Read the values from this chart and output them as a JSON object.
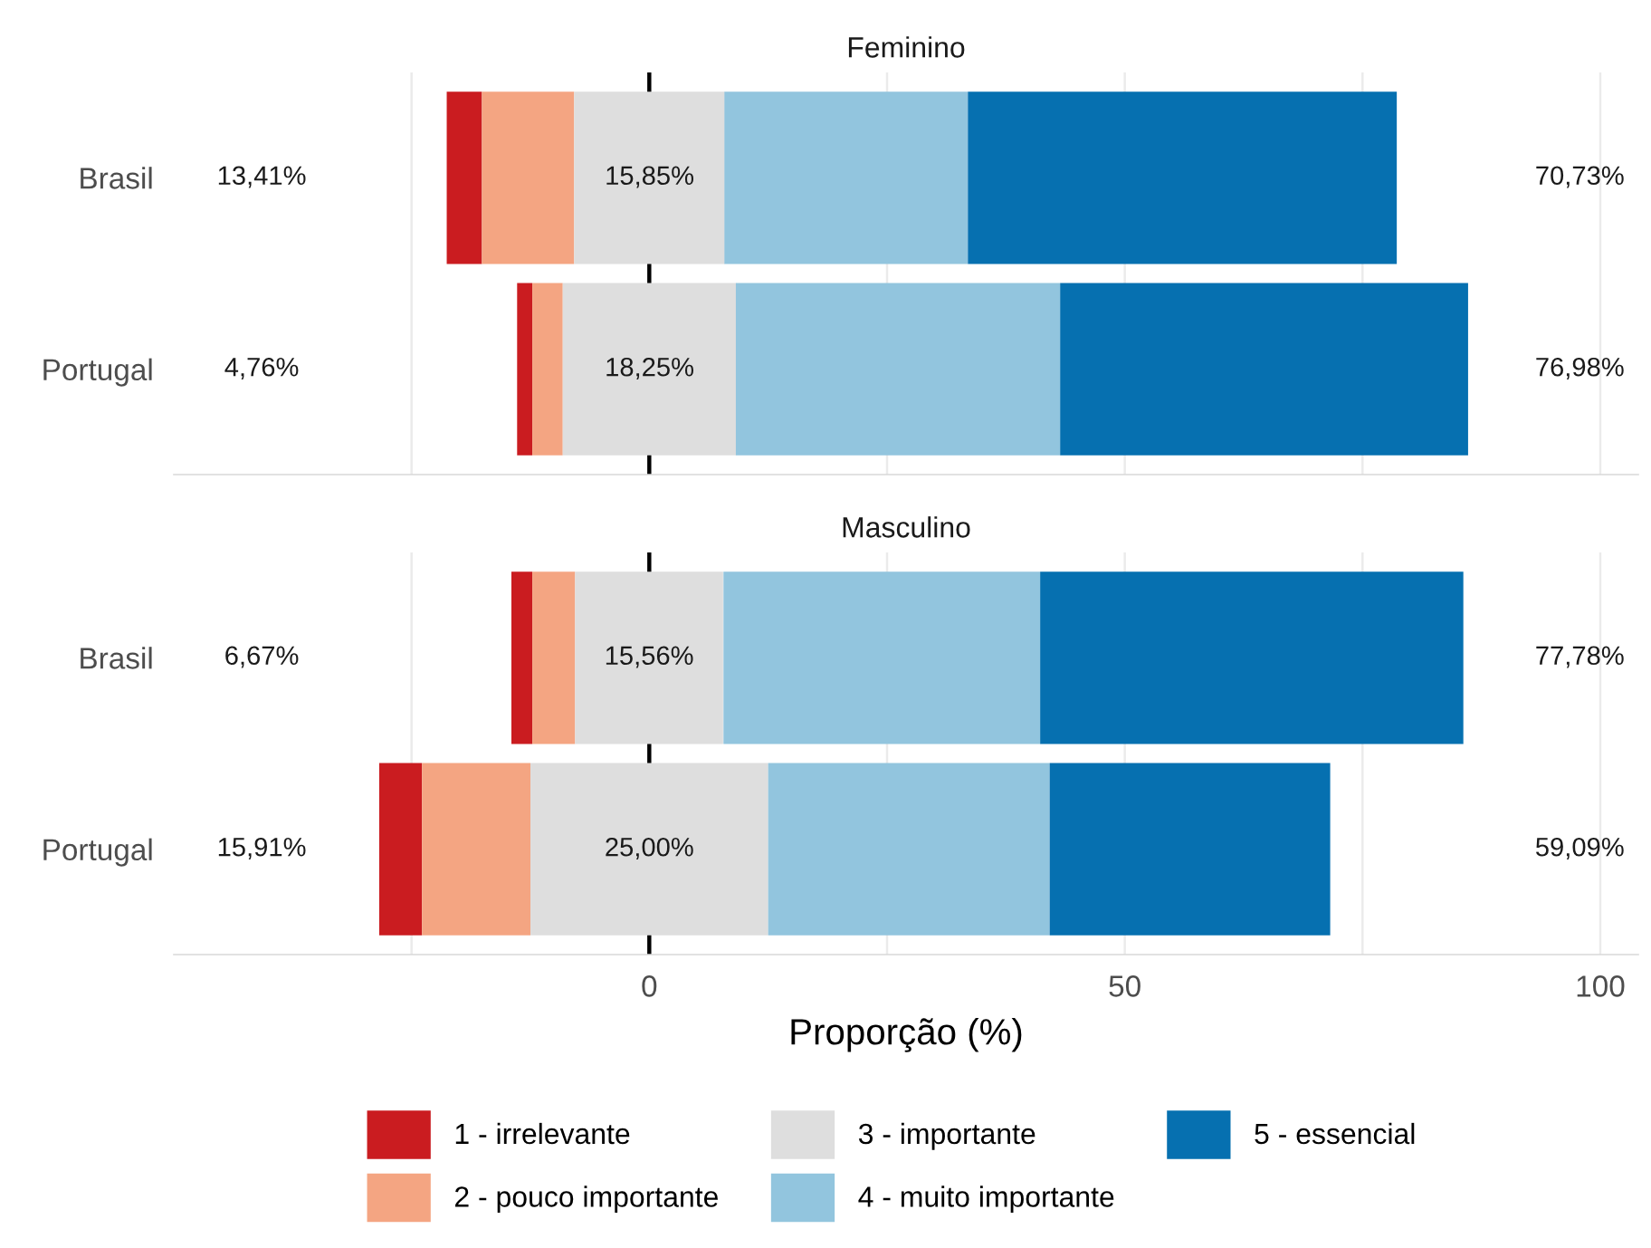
{
  "chart_data": [
    {
      "type": "bar",
      "orientation": "horizontal",
      "title": "Feminino",
      "categories": [
        "Brasil",
        "Portugal"
      ],
      "series": [
        {
          "color": "#ca1c20",
          "base": [
            -21.3,
            -13.9
          ],
          "values": [
            3.7,
            1.6
          ]
        },
        {
          "color": "#f4a582",
          "base": [
            -17.6,
            -12.3
          ],
          "values": [
            9.7,
            3.2
          ]
        },
        {
          "color": "#dedede",
          "base": [
            -7.9,
            -9.1
          ],
          "values": [
            15.85,
            18.25
          ],
          "value_labels": [
            "15,85%",
            "18,25%"
          ]
        },
        {
          "color": "#92c5de",
          "base": [
            7.9,
            9.1
          ],
          "values": [
            25.6,
            34.1
          ]
        },
        {
          "color": "#0670b0",
          "base": [
            33.5,
            43.2
          ],
          "values": [
            45.1,
            42.9
          ]
        }
      ],
      "annotations": [
        "13,41%",
        "4,76%",
        "70,73%",
        "76,98%"
      ],
      "ref_lines": [
        {
          "axis": "x",
          "value": 0,
          "color": "#000000"
        }
      ],
      "xlim": [
        -50,
        104
      ],
      "xticks": [
        {
          "value": -25,
          "label": null
        },
        0,
        {
          "value": 25,
          "label": null
        },
        50,
        {
          "value": 75,
          "label": null
        },
        100
      ],
      "grid": "x",
      "tick_labels": "y",
      "legend": false
    },
    {
      "type": "bar",
      "orientation": "horizontal",
      "title": "Masculino",
      "xlabel": "Proporção (%)",
      "categories": [
        "Brasil",
        "Portugal"
      ],
      "series": [
        {
          "name": "1 - irrelevante",
          "color": "#ca1c20",
          "base": [
            -14.5,
            -28.4
          ],
          "values": [
            2.2,
            4.5
          ]
        },
        {
          "name": "2 - pouco importante",
          "color": "#f4a582",
          "base": [
            -12.3,
            -23.9
          ],
          "values": [
            4.5,
            11.4
          ]
        },
        {
          "name": "3 - importante",
          "color": "#dedede",
          "base": [
            -7.8,
            -12.5
          ],
          "values": [
            15.56,
            25.0
          ],
          "value_labels": [
            "15,56%",
            "25,00%"
          ]
        },
        {
          "name": "4 - muito importante",
          "color": "#92c5de",
          "base": [
            7.8,
            12.5
          ],
          "values": [
            33.3,
            29.6
          ]
        },
        {
          "name": "5 - essencial",
          "color": "#0670b0",
          "base": [
            41.1,
            42.1
          ],
          "values": [
            44.5,
            29.5
          ]
        }
      ],
      "annotations": [
        "6,67%",
        "15,91%",
        "77,78%",
        "59,09%"
      ],
      "ref_lines": [
        {
          "axis": "x",
          "value": 0,
          "color": "#000000"
        }
      ],
      "xlim": [
        -50,
        104
      ],
      "xticks": [
        {
          "value": -25,
          "label": null
        },
        0,
        {
          "value": 25,
          "label": null
        },
        50,
        {
          "value": 75,
          "label": null
        },
        100
      ],
      "grid": "x",
      "legend": "bottom"
    }
  ]
}
